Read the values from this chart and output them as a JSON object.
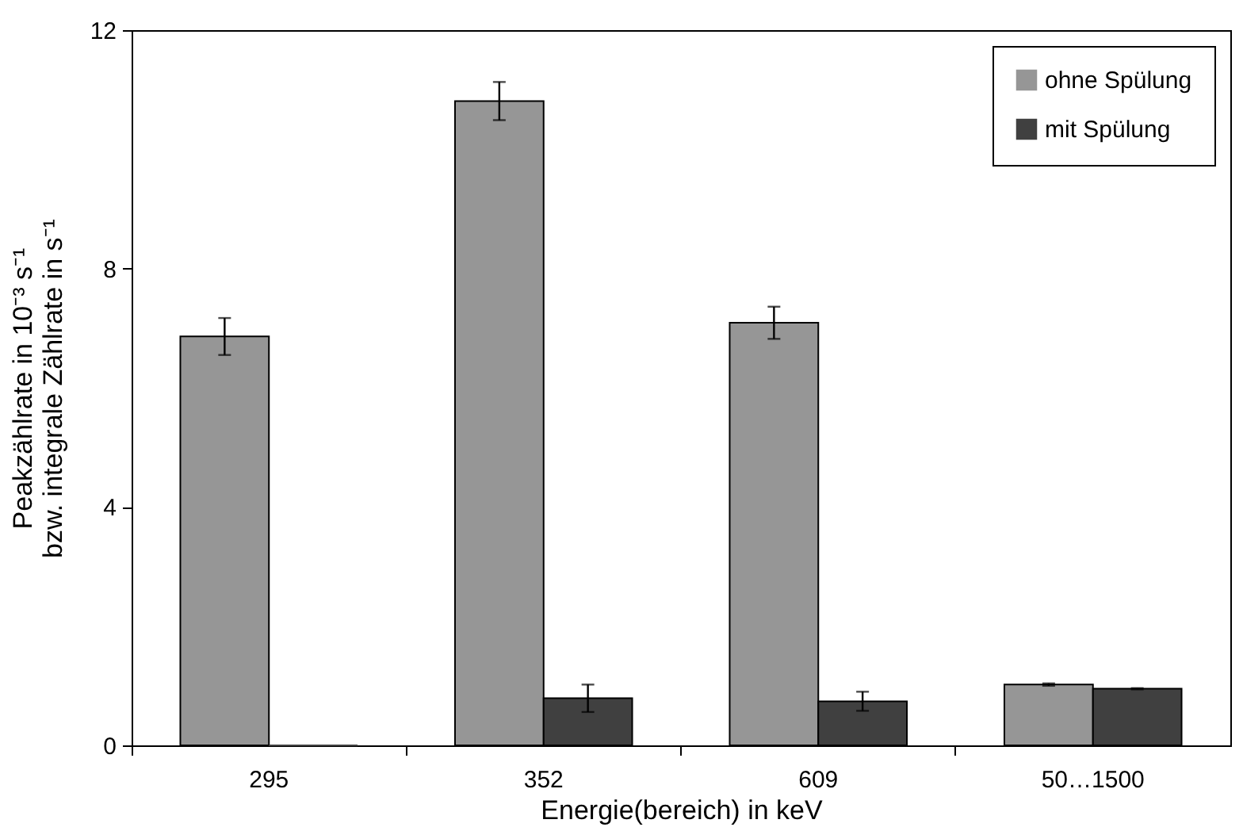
{
  "chart_data": {
    "type": "bar",
    "xlabel": "Energie(bereich) in keV",
    "ylabel": "Peakzählrate in 10⁻³ s⁻¹\nbzw. integrale Zählrate in s⁻¹",
    "categories": [
      "295",
      "352",
      "609",
      "50…1500"
    ],
    "series": [
      {
        "name": "ohne Spülung",
        "color": "#969696",
        "values": [
          6.86,
          10.81,
          7.09,
          1.02
        ],
        "errors": [
          0.31,
          0.32,
          0.27,
          0.02
        ]
      },
      {
        "name": "mit Spülung",
        "color": "#404040",
        "values": [
          0.0,
          0.79,
          0.74,
          0.95
        ],
        "errors": [
          null,
          0.23,
          0.16,
          0.01
        ]
      }
    ],
    "ylim": [
      0,
      12
    ],
    "yticks": [
      0,
      4,
      8,
      12
    ],
    "grid": false,
    "legend": "top right"
  }
}
